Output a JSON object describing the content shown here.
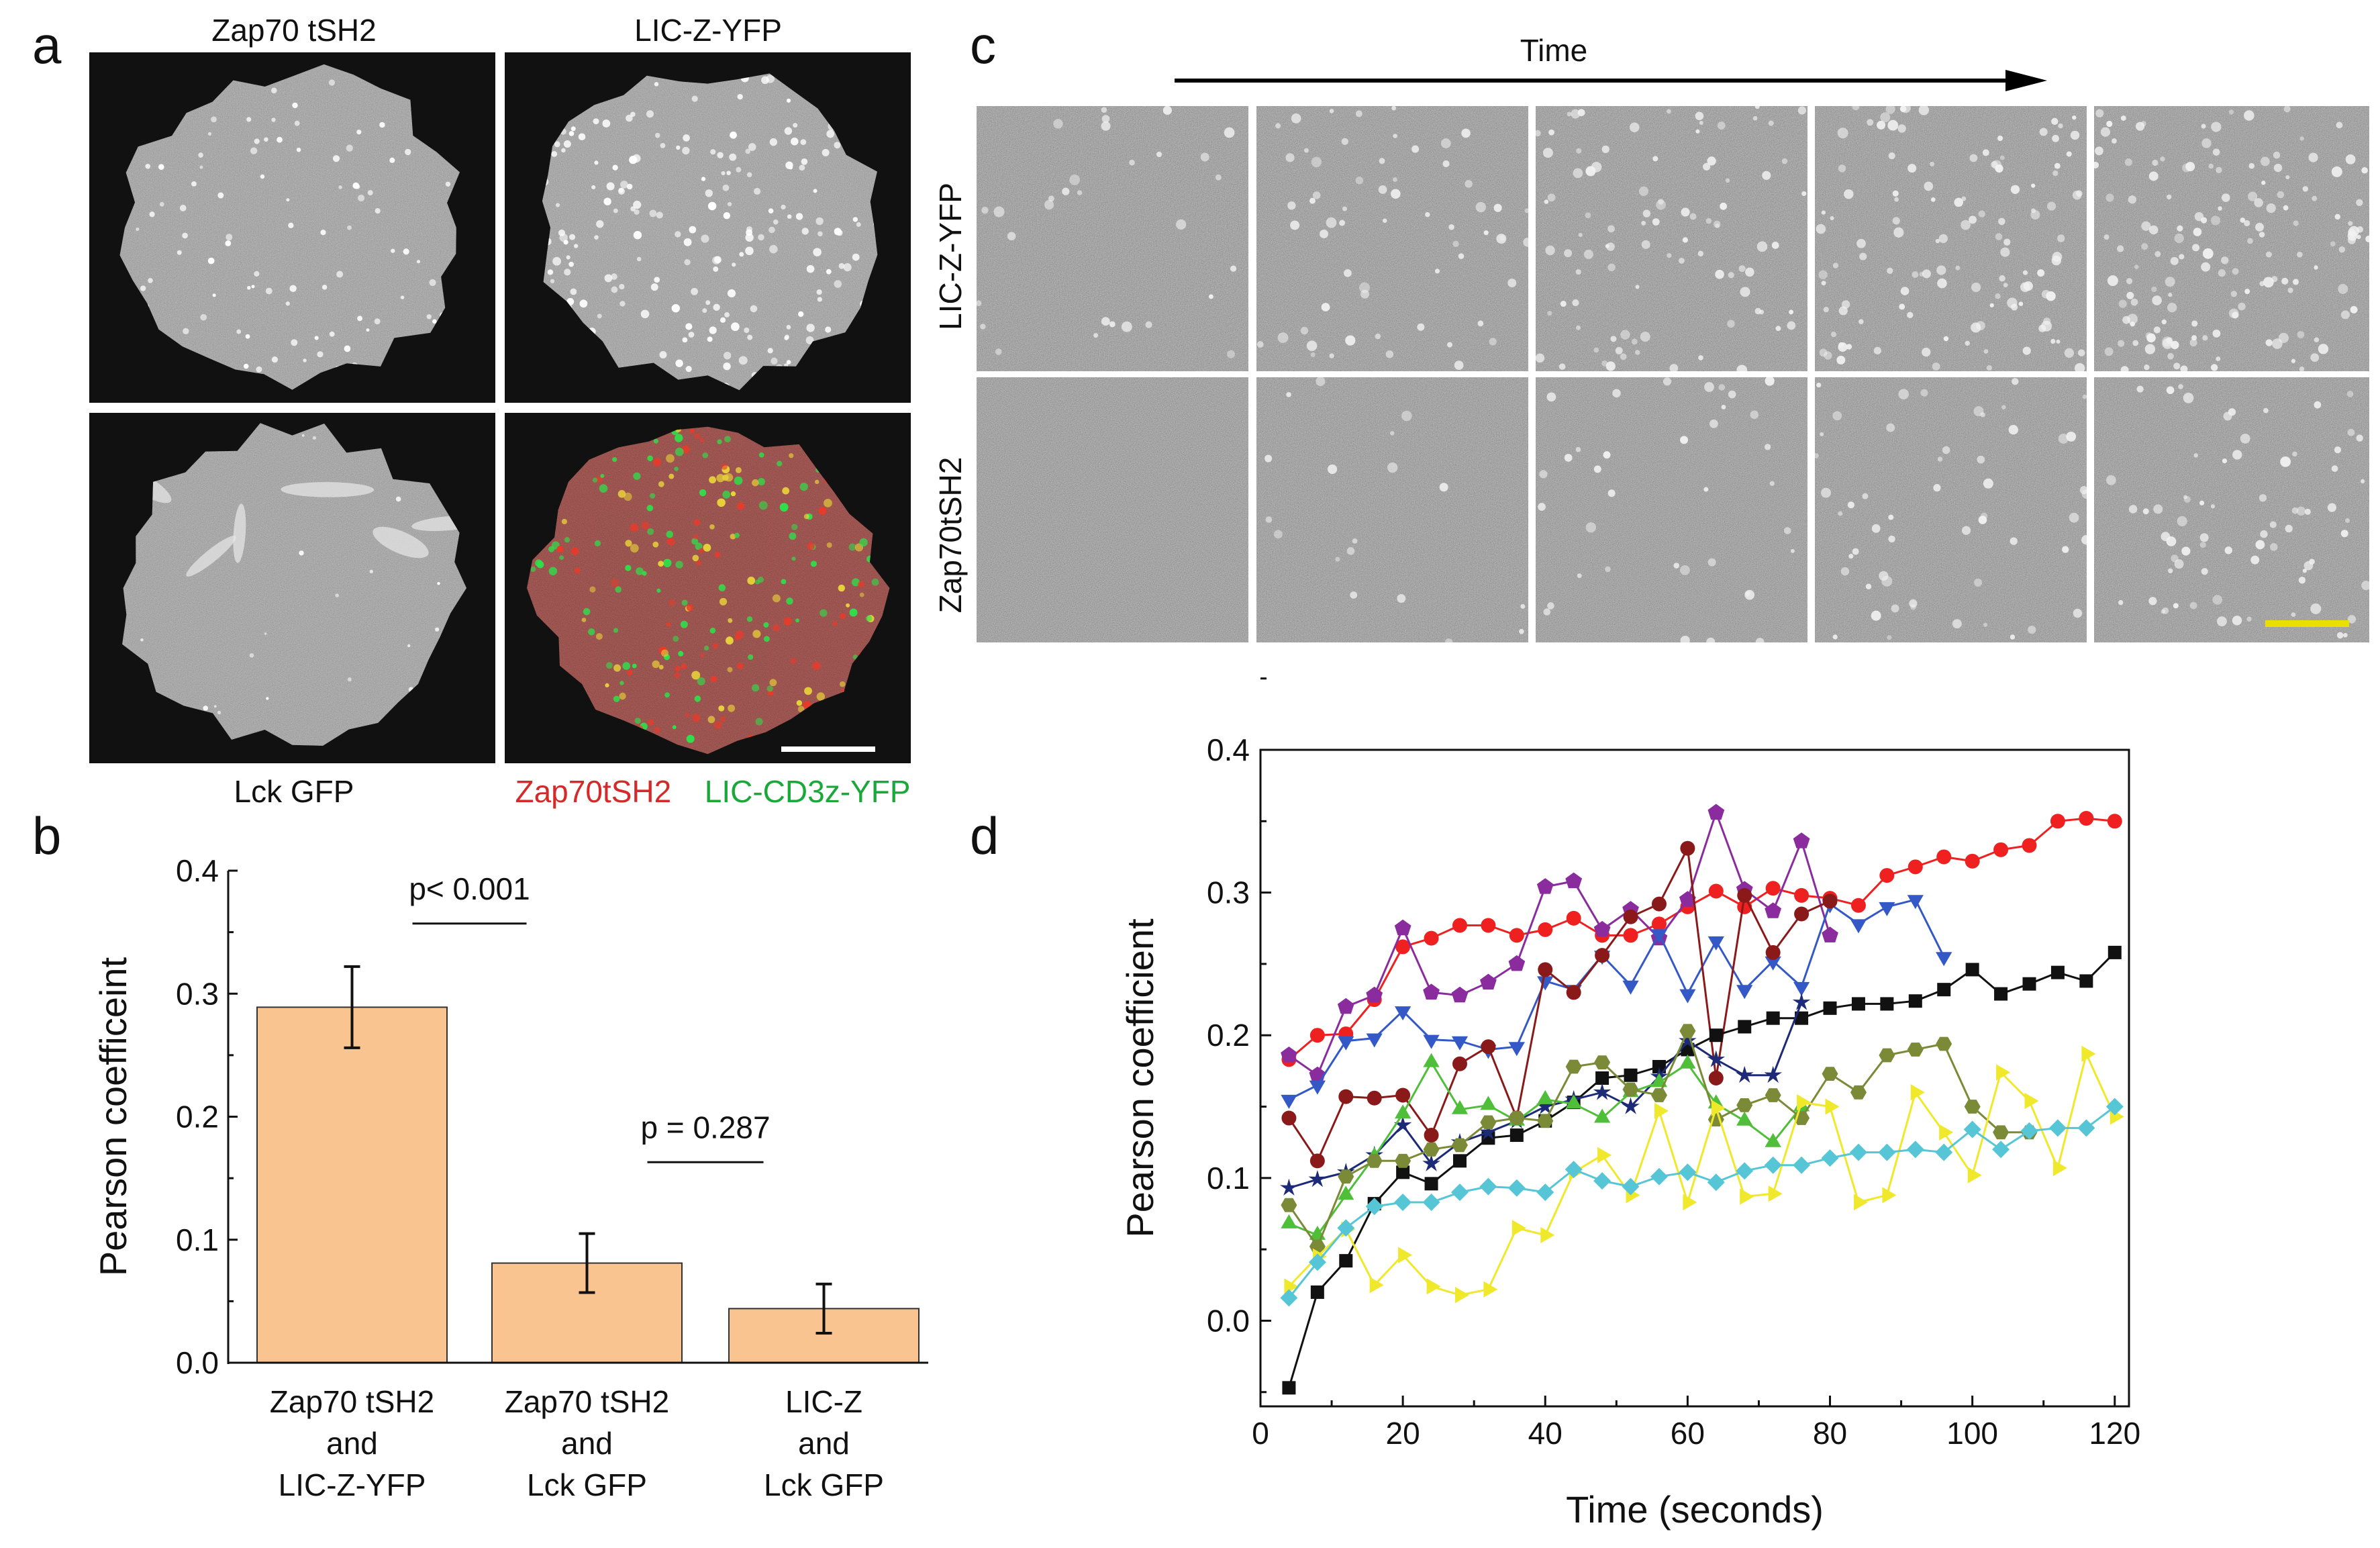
{
  "panel_a": {
    "label": "a",
    "titles": [
      "Zap70 tSH2",
      "LIC-Z-YFP"
    ],
    "bottom_left_caption": "Lck GFP",
    "merge_caption_red": "Zap70tSH2",
    "merge_caption_green": "LIC-CD3z-YFP",
    "colors": {
      "red": "#d42a2a",
      "green": "#1aa83a"
    }
  },
  "panel_b": {
    "label": "b"
  },
  "panel_c": {
    "label": "c",
    "time_label": "Time",
    "row_labels": [
      "LIC-Z-YFP",
      "Zap70tSH2"
    ],
    "scale_bar_color": "#e8e000"
  },
  "panel_d": {
    "label": "d"
  },
  "chart_data": [
    {
      "type": "bar",
      "panel": "b",
      "ylabel": "Pearson coefficeint",
      "ylim": [
        0,
        0.4
      ],
      "yticks": [
        "0.0",
        "0.1",
        "0.2",
        "0.3",
        "0.4"
      ],
      "categories": [
        [
          "Zap70 tSH2",
          "and",
          "LIC-Z-YFP"
        ],
        [
          "Zap70 tSH2",
          "and",
          "Lck GFP"
        ],
        [
          "LIC-Z",
          "and",
          "Lck GFP"
        ]
      ],
      "values": [
        0.289,
        0.081,
        0.044
      ],
      "errors": [
        0.033,
        0.024,
        0.02
      ],
      "bar_color": "#f9c490",
      "annotations": [
        {
          "text": "p< 0.001",
          "between": [
            0,
            1
          ],
          "y": 0.357
        },
        {
          "text": "p = 0.287",
          "between": [
            1,
            2
          ],
          "y": 0.163
        }
      ]
    },
    {
      "type": "scatter",
      "panel": "d",
      "xlabel": "Time (seconds)",
      "ylabel": "Pearson coefficient",
      "xlim": [
        0,
        122
      ],
      "ylim": [
        -0.06,
        0.4
      ],
      "xticks": [
        "0",
        "20",
        "40",
        "60",
        "80",
        "100",
        "120"
      ],
      "yticks": [
        "0.0",
        "0.1",
        "0.2",
        "0.3",
        "0.4"
      ],
      "series": [
        {
          "name": "red-circles",
          "color": "#ee2020",
          "marker": "circle",
          "x": [
            4,
            8,
            12,
            16,
            20,
            24,
            28,
            32,
            36,
            40,
            44,
            48,
            52,
            56,
            60,
            64,
            68,
            72,
            76,
            80,
            84,
            88,
            92,
            96,
            100,
            104,
            108,
            112,
            116,
            120
          ],
          "y": [
            0.183,
            0.2,
            0.201,
            0.225,
            0.262,
            0.268,
            0.277,
            0.277,
            0.27,
            0.274,
            0.282,
            0.27,
            0.27,
            0.278,
            0.29,
            0.301,
            0.29,
            0.303,
            0.298,
            0.296,
            0.291,
            0.312,
            0.318,
            0.325,
            0.322,
            0.33,
            0.333,
            0.35,
            0.352,
            0.35
          ]
        },
        {
          "name": "purple-pentagons",
          "color": "#8a2b9e",
          "marker": "pentagon",
          "x": [
            4,
            8,
            12,
            16,
            20,
            24,
            28,
            32,
            36,
            40,
            44,
            48,
            52,
            56,
            60,
            64,
            68,
            72,
            76,
            80
          ],
          "y": [
            0.186,
            0.172,
            0.22,
            0.228,
            0.275,
            0.23,
            0.228,
            0.237,
            0.25,
            0.304,
            0.308,
            0.274,
            0.288,
            0.268,
            0.295,
            0.356,
            0.302,
            0.287,
            0.336,
            0.27
          ]
        },
        {
          "name": "blue-triangles-down",
          "color": "#3458c6",
          "marker": "tri-down",
          "x": [
            4,
            8,
            12,
            16,
            20,
            24,
            28,
            32,
            36,
            40,
            44,
            48,
            52,
            56,
            60,
            64,
            68,
            72,
            76,
            80,
            84,
            88,
            92,
            96
          ],
          "y": [
            0.155,
            0.165,
            0.196,
            0.198,
            0.217,
            0.197,
            0.196,
            0.19,
            0.192,
            0.238,
            0.232,
            0.256,
            0.235,
            0.271,
            0.229,
            0.266,
            0.232,
            0.252,
            0.234,
            0.292,
            0.278,
            0.29,
            0.295,
            0.255
          ]
        },
        {
          "name": "darkred-balls",
          "color": "#8a1a1a",
          "marker": "circle",
          "x": [
            4,
            8,
            12,
            16,
            20,
            24,
            28,
            32,
            36,
            40,
            44,
            48,
            52,
            56,
            60,
            64,
            68,
            72,
            76,
            80
          ],
          "y": [
            0.142,
            0.112,
            0.157,
            0.156,
            0.158,
            0.13,
            0.18,
            0.192,
            0.142,
            0.246,
            0.23,
            0.256,
            0.283,
            0.292,
            0.331,
            0.17,
            0.298,
            0.258,
            0.285,
            0.294
          ]
        },
        {
          "name": "black-squares",
          "color": "#111111",
          "marker": "square",
          "x": [
            4,
            8,
            12,
            16,
            20,
            24,
            28,
            32,
            36,
            40,
            44,
            48,
            52,
            56,
            60,
            64,
            68,
            72,
            76,
            80,
            84,
            88,
            92,
            96,
            100,
            104,
            108,
            112,
            116,
            120
          ],
          "y": [
            -0.047,
            0.02,
            0.042,
            0.082,
            0.104,
            0.096,
            0.112,
            0.128,
            0.13,
            0.14,
            0.153,
            0.17,
            0.172,
            0.178,
            0.19,
            0.2,
            0.206,
            0.212,
            0.212,
            0.219,
            0.222,
            0.222,
            0.224,
            0.232,
            0.246,
            0.229,
            0.236,
            0.244,
            0.238,
            0.258
          ]
        },
        {
          "name": "navy-stars",
          "color": "#1c2a78",
          "marker": "star",
          "x": [
            4,
            8,
            12,
            16,
            20,
            24,
            28,
            32,
            36,
            40,
            44,
            48,
            52,
            56,
            60,
            64,
            68,
            72,
            76
          ],
          "y": [
            0.093,
            0.099,
            0.104,
            0.116,
            0.137,
            0.11,
            0.125,
            0.132,
            0.14,
            0.15,
            0.155,
            0.16,
            0.15,
            0.171,
            0.196,
            0.183,
            0.172,
            0.172,
            0.223
          ]
        },
        {
          "name": "green-triangles-up",
          "color": "#4fbf3a",
          "marker": "tri-up",
          "x": [
            4,
            8,
            12,
            16,
            20,
            24,
            28,
            32,
            36,
            40,
            44,
            48,
            52,
            56,
            60,
            64,
            68,
            72,
            76
          ],
          "y": [
            0.068,
            0.06,
            0.088,
            0.115,
            0.145,
            0.181,
            0.148,
            0.151,
            0.14,
            0.155,
            0.152,
            0.142,
            0.16,
            0.167,
            0.18,
            0.152,
            0.14,
            0.125,
            0.15
          ]
        },
        {
          "name": "olive-hexagons",
          "color": "#7a8a36",
          "marker": "hexagon",
          "x": [
            4,
            8,
            12,
            16,
            20,
            24,
            28,
            32,
            36,
            40,
            44,
            48,
            52,
            56,
            60,
            64,
            68,
            72,
            76,
            80,
            84,
            88,
            92,
            96,
            100,
            104,
            108
          ],
          "y": [
            0.081,
            0.052,
            0.101,
            0.112,
            0.112,
            0.12,
            0.123,
            0.139,
            0.142,
            0.14,
            0.178,
            0.181,
            0.162,
            0.158,
            0.203,
            0.141,
            0.151,
            0.158,
            0.142,
            0.173,
            0.16,
            0.186,
            0.19,
            0.194,
            0.15,
            0.132,
            0.132
          ]
        },
        {
          "name": "yellow-triangles-right",
          "color": "#f0e82a",
          "marker": "tri-right",
          "x": [
            4,
            8,
            12,
            16,
            20,
            24,
            28,
            32,
            36,
            40,
            44,
            48,
            52,
            56,
            60,
            64,
            68,
            72,
            76,
            80,
            84,
            88,
            92,
            96,
            100,
            104,
            108,
            112,
            116,
            120
          ],
          "y": [
            0.024,
            0.045,
            0.064,
            0.025,
            0.046,
            0.024,
            0.018,
            0.022,
            0.065,
            0.06,
            0.104,
            0.116,
            0.088,
            0.147,
            0.083,
            0.149,
            0.087,
            0.089,
            0.153,
            0.15,
            0.083,
            0.088,
            0.16,
            0.132,
            0.102,
            0.174,
            0.154,
            0.107,
            0.187,
            0.143
          ]
        },
        {
          "name": "cyan-diamonds",
          "color": "#56c6d6",
          "marker": "diamond",
          "x": [
            4,
            8,
            12,
            16,
            20,
            24,
            28,
            32,
            36,
            40,
            44,
            48,
            52,
            56,
            60,
            64,
            68,
            72,
            76,
            80,
            84,
            88,
            92,
            96,
            100,
            104,
            108,
            112,
            116,
            120
          ],
          "y": [
            0.016,
            0.041,
            0.065,
            0.08,
            0.083,
            0.083,
            0.09,
            0.094,
            0.093,
            0.09,
            0.106,
            0.098,
            0.094,
            0.101,
            0.104,
            0.097,
            0.105,
            0.109,
            0.109,
            0.114,
            0.118,
            0.118,
            0.12,
            0.118,
            0.134,
            0.12,
            0.133,
            0.135,
            0.135,
            0.15
          ]
        }
      ]
    }
  ]
}
